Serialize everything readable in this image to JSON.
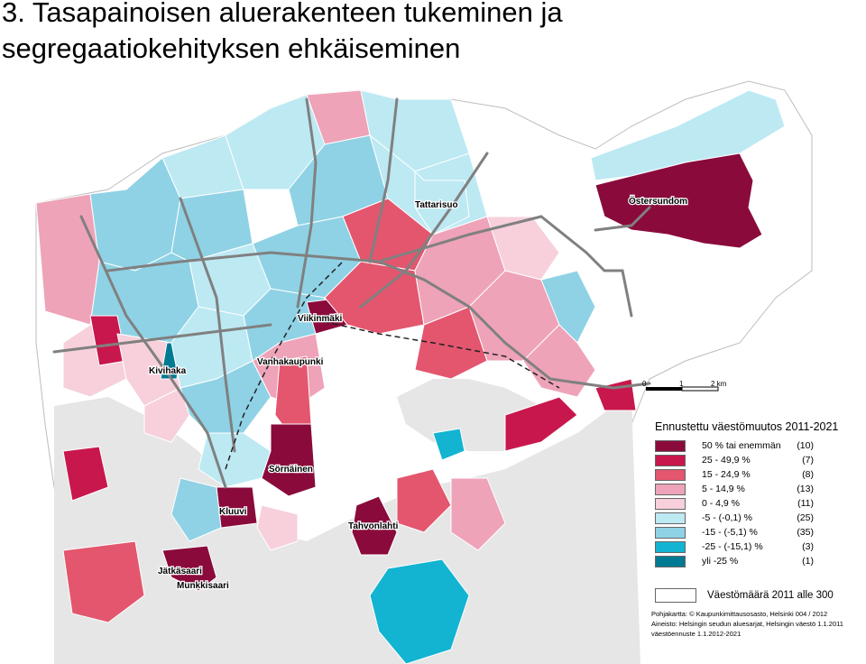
{
  "title": {
    "line1": "3.  Tasapainoisen aluerakenteen tukeminen ja",
    "line2": "segregaatiokehityksen ehkäiseminen"
  },
  "colors": {
    "c1": "#8a0a3c",
    "c2": "#c8174c",
    "c3": "#e3566e",
    "c4": "#eea3b8",
    "c5": "#f7d0dc",
    "c6": "#bde9f3",
    "c7": "#8fd2e5",
    "c8": "#12b4d1",
    "c9": "#007a92",
    "road": "#808080",
    "sea": "#e6e6e6"
  },
  "places": {
    "tattarisuo": "Tattarisuo",
    "ostersundom": "Östersundom",
    "viikinmaki": "Viikinmäki",
    "kivihaka": "Kivihaka",
    "vanhakaupunki": "Vanhakaupunki",
    "sornainen": "Sörnäinen",
    "kluuvi": "Kluuvi",
    "tahvonlahti": "Tahvonlahti",
    "jatkasaari": "Jätkäsaari",
    "munkkisaari": "Munkkisaari"
  },
  "scale": {
    "t0": "0",
    "t1": "1",
    "t2": "2 km"
  },
  "legend": {
    "title": "Ennustettu väestömuutos 2011-2021",
    "items": [
      {
        "label": "50 % tai enemmän",
        "count": "(10)"
      },
      {
        "label": "25 - 49,9 %",
        "count": "(7)"
      },
      {
        "label": "15 - 24,9 %",
        "count": "(8)"
      },
      {
        "label": "5 - 14,9 %",
        "count": "(13)"
      },
      {
        "label": "0 - 4,9 %",
        "count": "(11)"
      },
      {
        "label": "-5 - (-0,1) %",
        "count": "(25)"
      },
      {
        "label": "-15 - (-5,1) %",
        "count": "(35)"
      },
      {
        "label": "-25 - (-15,1) %",
        "count": "(3)"
      },
      {
        "label": "yli -25 %",
        "count": "(1)"
      }
    ],
    "population_label": "Väestömäärä 2011 alle 300"
  },
  "source": {
    "line1": "Pohjakartta: © Kaupunkimittausosasto, Helsinki  004 / 2012",
    "line2": "Aineisto: Helsingin seudun aluesarjat, Helsingin väestö 1.1.2011",
    "line3": "väestöennuste 1.1.2012-2021"
  }
}
